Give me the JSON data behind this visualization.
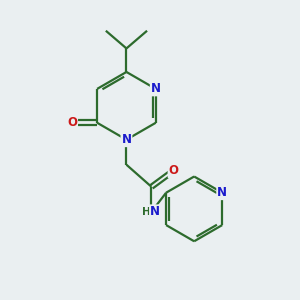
{
  "bg_color": "#eaeff1",
  "bond_color": "#2d6b2d",
  "nitrogen_color": "#1a1acc",
  "oxygen_color": "#cc1a1a",
  "line_width": 1.6,
  "figsize": [
    3.0,
    3.0
  ],
  "dpi": 100,
  "xlim": [
    0,
    10
  ],
  "ylim": [
    0,
    10
  ]
}
